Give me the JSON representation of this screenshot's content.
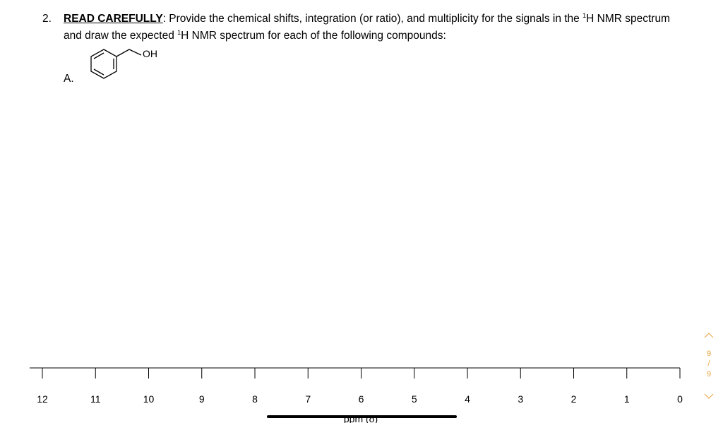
{
  "question": {
    "number": "2.",
    "emphasis": "READ CAREFULLY",
    "text_parts": [
      ": Provide the chemical shifts, integration (or ratio), and multiplicity for the signals in the ",
      "1",
      "H NMR spectrum and draw the expected ",
      "1",
      "H NMR spectrum for each of the following compounds:"
    ]
  },
  "compound": {
    "label": "A.",
    "group": "OH"
  },
  "axis": {
    "ticks": [
      "12",
      "11",
      "10",
      "9",
      "8",
      "7",
      "6",
      "5",
      "4",
      "3",
      "2",
      "1",
      "0"
    ],
    "label": "ppm (δ)"
  },
  "pager": {
    "current": "9",
    "separator": "/",
    "total": "9"
  }
}
